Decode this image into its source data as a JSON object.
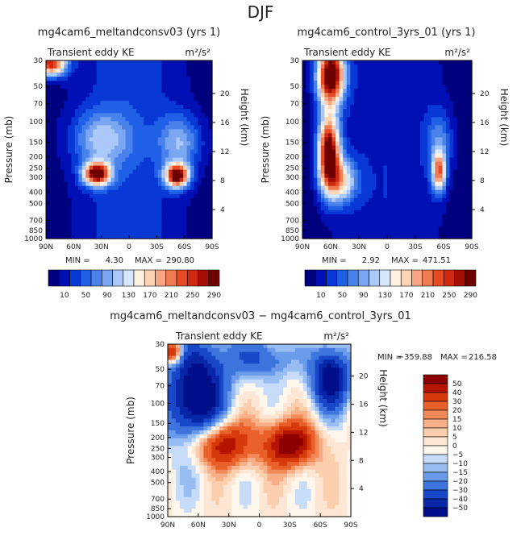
{
  "page_title": "DJF",
  "chart_data": [
    {
      "type": "heatmap",
      "title": "mg4cam6_meltandconsv03 (yrs 1)",
      "subtitle": "Transient eddy KE",
      "units": "m²/s²",
      "xlabel": "",
      "ylabel": "Pressure (mb)",
      "y2label": "Height (km)",
      "x_ticks": [
        "90N",
        "60N",
        "30N",
        "0",
        "30S",
        "60S",
        "90S"
      ],
      "y_ticks": [
        "30",
        "50",
        "70",
        "100",
        "150",
        "200",
        "250",
        "300",
        "400",
        "500",
        "700",
        "850",
        "1000"
      ],
      "y2_ticks": [
        "20",
        "16",
        "12",
        "8",
        "4"
      ],
      "min_label": "MIN =",
      "min_value": "4.30",
      "max_label": "MAX =",
      "max_value": "290.80",
      "colorbar_labels": [
        "10",
        "50",
        "90",
        "130",
        "170",
        "210",
        "250",
        "290"
      ],
      "colorbar_colors": [
        "#00007f",
        "#0010b5",
        "#0838d6",
        "#2060e6",
        "#4a82ec",
        "#7aa6f2",
        "#aac8f8",
        "#d8e8fc",
        "#fff2e0",
        "#fcd4b4",
        "#f7a582",
        "#f07a52",
        "#e64b25",
        "#cf2a10",
        "#a50f05",
        "#6e0000"
      ],
      "features": [
        {
          "lat": -35,
          "p": 280,
          "rx": 10,
          "rlog": 0.16,
          "v": 285
        },
        {
          "lat": 52,
          "p": 290,
          "rx": 9,
          "rlog": 0.16,
          "v": 290
        },
        {
          "lat": -85,
          "p": 32,
          "rx": 12,
          "rlog": 0.17,
          "v": 250
        },
        {
          "lat": -30,
          "p": 140,
          "rx": 22,
          "rlog": 0.38,
          "v": 90
        },
        {
          "lat": 55,
          "p": 150,
          "rx": 16,
          "rlog": 0.38,
          "v": 90
        }
      ]
    },
    {
      "type": "heatmap",
      "title": "mg4cam6_control_3yrs_01 (yrs 1)",
      "subtitle": "Transient eddy KE",
      "units": "m²/s²",
      "xlabel": "",
      "ylabel": "Pressure (mb)",
      "y2label": "Height (km)",
      "x_ticks": [
        "90N",
        "60N",
        "30N",
        "0",
        "30S",
        "60S",
        "90S"
      ],
      "y_ticks": [
        "30",
        "50",
        "70",
        "100",
        "150",
        "200",
        "250",
        "300",
        "400",
        "500",
        "700",
        "850",
        "1000"
      ],
      "y2_ticks": [
        "20",
        "16",
        "12",
        "8",
        "4"
      ],
      "min_label": "MIN =",
      "min_value": "2.92",
      "max_label": "MAX =",
      "max_value": "471.51",
      "colorbar_labels": [
        "10",
        "50",
        "90",
        "130",
        "170",
        "210",
        "250",
        "290"
      ],
      "colorbar_colors": [
        "#00007f",
        "#0010b5",
        "#0838d6",
        "#2060e6",
        "#4a82ec",
        "#7aa6f2",
        "#aac8f8",
        "#d8e8fc",
        "#fff2e0",
        "#fcd4b4",
        "#f7a582",
        "#f07a52",
        "#e64b25",
        "#cf2a10",
        "#a50f05",
        "#6e0000"
      ],
      "features": [
        {
          "lat": -60,
          "p": 40,
          "rx": 10,
          "rlog": 0.4,
          "v": 320
        },
        {
          "lat": -62,
          "p": 180,
          "rx": 8,
          "rlog": 0.5,
          "v": 300
        },
        {
          "lat": -50,
          "p": 320,
          "rx": 12,
          "rlog": 0.3,
          "v": 150
        },
        {
          "lat": 55,
          "p": 270,
          "rx": 5,
          "rlog": 0.28,
          "v": 190
        },
        {
          "lat": 55,
          "p": 150,
          "rx": 10,
          "rlog": 0.45,
          "v": 70
        }
      ]
    },
    {
      "type": "heatmap",
      "title": "mg4cam6_meltandconsv03 − mg4cam6_control_3yrs_01",
      "subtitle": "Transient eddy KE",
      "units": "m²/s²",
      "xlabel": "",
      "ylabel": "Pressure (mb)",
      "y2label": "Height (km)",
      "x_ticks": [
        "90N",
        "60N",
        "30N",
        "0",
        "30S",
        "60S",
        "90S"
      ],
      "y_ticks": [
        "30",
        "50",
        "70",
        "100",
        "150",
        "200",
        "250",
        "300",
        "400",
        "500",
        "700",
        "850",
        "1000"
      ],
      "y2_ticks": [
        "20",
        "16",
        "12",
        "8",
        "4"
      ],
      "min_label": "MIN =",
      "min_value": "−359.88",
      "max_label": "MAX =",
      "max_value": "216.58",
      "colorbar_labels": [
        "50",
        "40",
        "30",
        "20",
        "15",
        "10",
        "5",
        "0",
        "−5",
        "−10",
        "−15",
        "−20",
        "−30",
        "−40",
        "−50"
      ],
      "colorbar_colors": [
        "#8c0000",
        "#b51400",
        "#d63a0a",
        "#e9602a",
        "#f28a58",
        "#f8ae86",
        "#fbcfae",
        "#fde7d4",
        "#fff6ec",
        "#c6dcf8",
        "#97bdf2",
        "#6a9aea",
        "#3e74de",
        "#1848c8",
        "#0826a8",
        "#000e8a"
      ],
      "features": [
        {
          "lat": -40,
          "p": 230,
          "rx": 22,
          "rlog": 0.35,
          "v": 60
        },
        {
          "lat": 30,
          "p": 230,
          "rx": 18,
          "rlog": 0.33,
          "v": 60
        },
        {
          "lat": -85,
          "p": 35,
          "rx": 6,
          "rlog": 0.15,
          "v": 60
        },
        {
          "lat": -62,
          "p": 90,
          "rx": 20,
          "rlog": 0.8,
          "v": -70
        },
        {
          "lat": 70,
          "p": 60,
          "rx": 14,
          "rlog": 0.45,
          "v": -60
        },
        {
          "lat": 0,
          "p": 40,
          "rx": 25,
          "rlog": 0.3,
          "v": -30
        }
      ]
    }
  ]
}
